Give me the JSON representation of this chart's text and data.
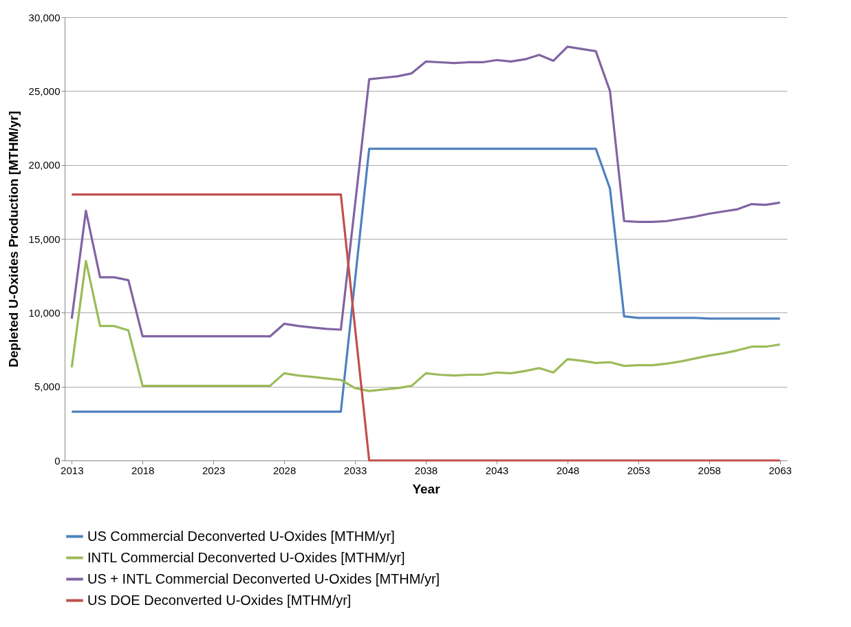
{
  "chart_data": {
    "type": "line",
    "xlabel": "Year",
    "ylabel": "Depleted U-Oxides Production [MTHM/yr]",
    "x": [
      2013,
      2014,
      2015,
      2016,
      2017,
      2018,
      2019,
      2020,
      2021,
      2022,
      2023,
      2024,
      2025,
      2026,
      2027,
      2028,
      2029,
      2030,
      2031,
      2032,
      2033,
      2034,
      2035,
      2036,
      2037,
      2038,
      2039,
      2040,
      2041,
      2042,
      2043,
      2044,
      2045,
      2046,
      2047,
      2048,
      2049,
      2050,
      2051,
      2052,
      2053,
      2054,
      2055,
      2056,
      2057,
      2058,
      2059,
      2060,
      2061,
      2062,
      2063
    ],
    "series": [
      {
        "name": "US Commercial Deconverted U-Oxides [MTHM/yr]",
        "color": "#4f81bd",
        "values": [
          3300,
          3300,
          3300,
          3300,
          3300,
          3300,
          3300,
          3300,
          3300,
          3300,
          3300,
          3300,
          3300,
          3300,
          3300,
          3300,
          3300,
          3300,
          3300,
          3300,
          12200,
          21100,
          21100,
          21100,
          21100,
          21100,
          21100,
          21100,
          21100,
          21100,
          21100,
          21100,
          21100,
          21100,
          21100,
          21100,
          21100,
          21100,
          18400,
          9750,
          9650,
          9650,
          9650,
          9650,
          9650,
          9600,
          9600,
          9600,
          9600,
          9600,
          9600
        ]
      },
      {
        "name": "INTL Commercial Deconverted U-Oxides [MTHM/yr]",
        "color": "#9bbb59",
        "values": [
          6300,
          13500,
          9100,
          9100,
          8800,
          5050,
          5050,
          5050,
          5050,
          5050,
          5050,
          5050,
          5050,
          5050,
          5050,
          5900,
          5750,
          5650,
          5550,
          5450,
          4900,
          4700,
          4800,
          4900,
          5050,
          5900,
          5800,
          5750,
          5800,
          5800,
          5950,
          5900,
          6050,
          6250,
          5950,
          6850,
          6750,
          6600,
          6650,
          6400,
          6450,
          6450,
          6550,
          6700,
          6900,
          7100,
          7250,
          7450,
          7700,
          7700,
          7850
        ]
      },
      {
        "name": "US + INTL Commercial Deconverted U-Oxides [MTHM/yr]",
        "color": "#8064a2",
        "values": [
          9600,
          16900,
          12400,
          12400,
          12200,
          8400,
          8400,
          8400,
          8400,
          8400,
          8400,
          8400,
          8400,
          8400,
          8400,
          9250,
          9100,
          9000,
          8900,
          8850,
          17300,
          25800,
          25900,
          26000,
          26200,
          27000,
          26950,
          26900,
          26950,
          26950,
          27100,
          27000,
          27150,
          27450,
          27050,
          28000,
          27850,
          27700,
          25000,
          16200,
          16150,
          16150,
          16200,
          16350,
          16500,
          16700,
          16850,
          17000,
          17350,
          17300,
          17450
        ]
      },
      {
        "name": "US DOE Deconverted U-Oxides [MTHM/yr]",
        "color": "#c0504d",
        "values": [
          18000,
          18000,
          18000,
          18000,
          18000,
          18000,
          18000,
          18000,
          18000,
          18000,
          18000,
          18000,
          18000,
          18000,
          18000,
          18000,
          18000,
          18000,
          18000,
          18000,
          9000,
          0,
          0,
          0,
          0,
          0,
          0,
          0,
          0,
          0,
          0,
          0,
          0,
          0,
          0,
          0,
          0,
          0,
          0,
          0,
          0,
          0,
          0,
          0,
          0,
          0,
          0,
          0,
          0,
          0,
          0
        ]
      }
    ],
    "xlim": [
      2012.5,
      2063.5
    ],
    "xticks": [
      2013,
      2018,
      2023,
      2028,
      2033,
      2038,
      2043,
      2048,
      2053,
      2058,
      2063
    ],
    "ylim": [
      0,
      30000
    ],
    "yticks": [
      0,
      {
        "value": 5000,
        "label": "5,000"
      },
      {
        "value": 10000,
        "label": "10,000"
      },
      {
        "value": 15000,
        "label": "15,000"
      },
      {
        "value": 20000,
        "label": "20,000"
      },
      {
        "value": 25000,
        "label": "25,000"
      },
      {
        "value": 30000,
        "label": "30,000"
      }
    ],
    "grid": "y",
    "legend": "bottom",
    "marker": "none",
    "line_style": "solid"
  }
}
